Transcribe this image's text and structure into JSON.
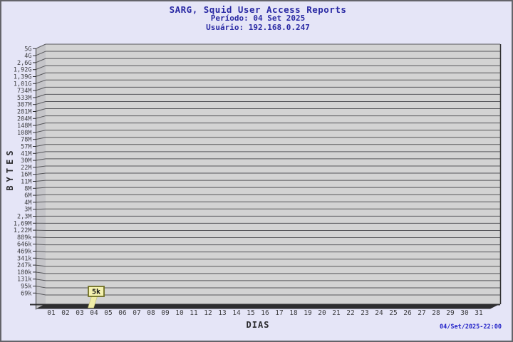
{
  "header": {
    "title": "SARG, Squid User Access Reports",
    "period": "Período: 04 Set 2025",
    "user": "Usuário: 192.168.0.247"
  },
  "chart_data": {
    "type": "bar",
    "title": "SARG, Squid User Access Reports",
    "subtitle": "Período: 04 Set 2025",
    "user_line": "Usuário: 192.168.0.247",
    "xlabel": "DIAS",
    "ylabel": "BYTES",
    "grid": "horizontal",
    "legend": "none",
    "x_categories": [
      "01",
      "02",
      "03",
      "04",
      "05",
      "06",
      "07",
      "08",
      "09",
      "10",
      "11",
      "12",
      "13",
      "14",
      "15",
      "16",
      "17",
      "18",
      "19",
      "20",
      "21",
      "22",
      "23",
      "24",
      "25",
      "26",
      "27",
      "28",
      "29",
      "30",
      "31"
    ],
    "y_tick_labels": [
      "5G",
      "4G",
      "2,6G",
      "1,92G",
      "1,39G",
      "1,01G",
      "734M",
      "533M",
      "387M",
      "281M",
      "204M",
      "148M",
      "108M",
      "78M",
      "57M",
      "41M",
      "30M",
      "22M",
      "16M",
      "11M",
      "8M",
      "6M",
      "4M",
      "3M",
      "2,3M",
      "1,69M",
      "1,22M",
      "889k",
      "646k",
      "469k",
      "341k",
      "247k",
      "180k",
      "131k",
      "95k",
      "69k"
    ],
    "bars": [
      {
        "x": "04",
        "value_label": "5k"
      }
    ],
    "footer_timestamp": "04/Set/2025-22:00",
    "colors": {
      "background": "#e5e5f7",
      "frame_border": "#64646a",
      "title_text": "#2a2aa4",
      "plot_bg": "#d3d3d3",
      "wall": "#c5c5c9",
      "grid_line": "#57575b",
      "axis_dark": "#2e2e30",
      "tick_text": "#3d3d40",
      "bar_fill": "#f0eda8",
      "bar_edge": "#c2bc72",
      "value_box_bg": "#f5f2b0",
      "value_box_border": "#6f6f23",
      "timestamp_text": "#2323c8"
    }
  }
}
